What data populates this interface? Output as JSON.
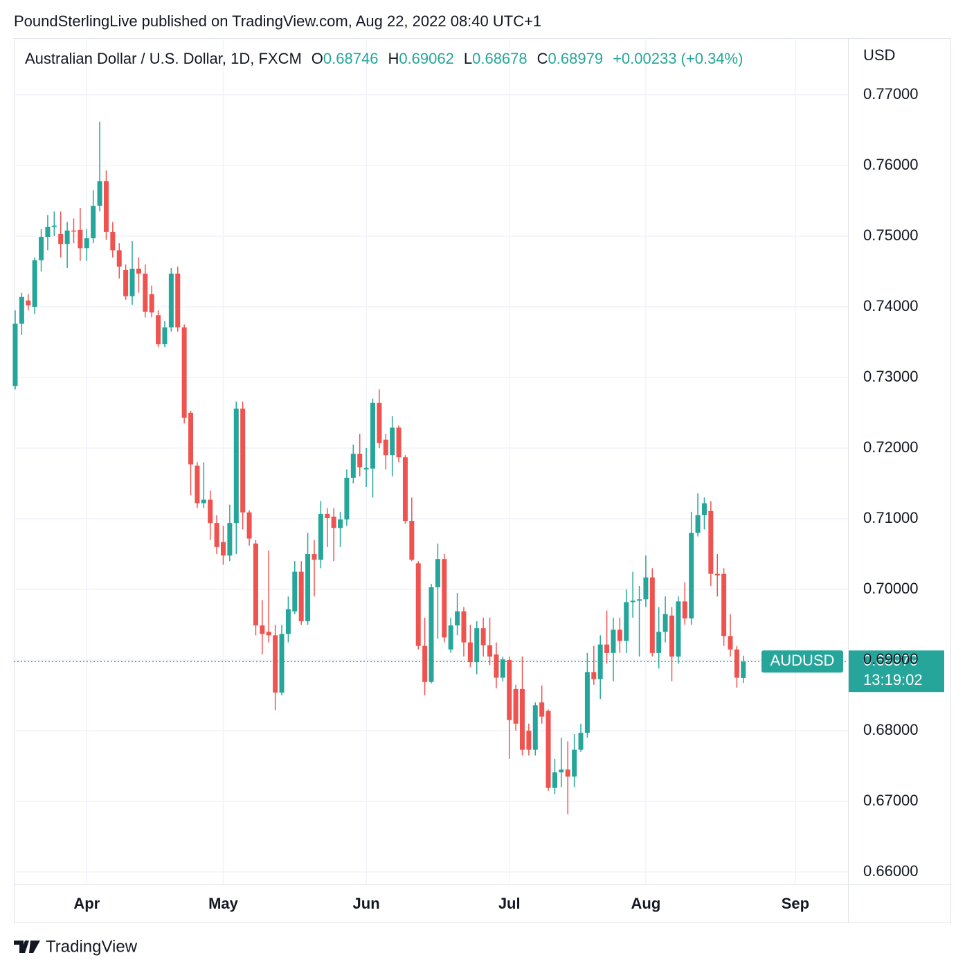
{
  "page": {
    "attribution": "PoundSterlingLive published on TradingView.com, Aug 22, 2022 08:40 UTC+1",
    "footer": "TradingView"
  },
  "chart_data": {
    "type": "candlestick",
    "title": "Australian Dollar / U.S. Dollar, 1D, FXCM",
    "legend": {
      "open_label": "O",
      "open": "0.68746",
      "high_label": "H",
      "high": "0.69062",
      "low_label": "L",
      "low": "0.68678",
      "close_label": "C",
      "close": "0.68979",
      "change": "+0.00233 (+0.34%)"
    },
    "y_axis_label": "USD",
    "last_price": {
      "symbol": "AUDUSD",
      "price": "0.68979",
      "countdown": "13:19:02"
    },
    "up_color": "#26a69a",
    "down_color": "#ef5350",
    "grid": true,
    "xlim": [
      -0.21,
      128.1
    ],
    "xticks": [
      {
        "value": 11,
        "label": "Apr"
      },
      {
        "value": 32,
        "label": "May"
      },
      {
        "value": 54,
        "label": "Jun"
      },
      {
        "value": 76,
        "label": "Jul"
      },
      {
        "value": 97,
        "label": "Aug"
      },
      {
        "value": 120,
        "label": "Sep"
      }
    ],
    "ylim": [
      0.65824,
      0.77804
    ],
    "yticks": [
      {
        "value": 0.66,
        "label": "0.66000"
      },
      {
        "value": 0.67,
        "label": "0.67000"
      },
      {
        "value": 0.68,
        "label": "0.68000"
      },
      {
        "value": 0.69,
        "label": "0.69000"
      },
      {
        "value": 0.7,
        "label": "0.70000"
      },
      {
        "value": 0.71,
        "label": "0.71000"
      },
      {
        "value": 0.72,
        "label": "0.72000"
      },
      {
        "value": 0.73,
        "label": "0.73000"
      },
      {
        "value": 0.74,
        "label": "0.74000"
      },
      {
        "value": 0.75,
        "label": "0.75000"
      },
      {
        "value": 0.76,
        "label": "0.76000"
      },
      {
        "value": 0.77,
        "label": "0.77000"
      }
    ],
    "open": [
      0.7288,
      0.7376,
      0.7409,
      0.74,
      0.7466,
      0.7499,
      0.7513,
      0.7503,
      0.7489,
      0.7508,
      0.7509,
      0.7483,
      0.7497,
      0.7543,
      0.7578,
      0.7506,
      0.748,
      0.7452,
      0.7415,
      0.7454,
      0.7447,
      0.7418,
      0.7388,
      0.7347,
      0.7371,
      0.7447,
      0.7371,
      0.725,
      0.7175,
      0.7122,
      0.7127,
      0.7094,
      0.7067,
      0.7048,
      0.7094,
      0.7256,
      0.7109,
      0.7065,
      0.6949,
      0.694,
      0.6935,
      0.6854,
      0.6937,
      0.6969,
      0.7025,
      0.6955,
      0.705,
      0.7042,
      0.7107,
      0.7103,
      0.7087,
      0.7099,
      0.7158,
      0.7192,
      0.717,
      0.7171,
      0.7264,
      0.7212,
      0.719,
      0.7229,
      0.7187,
      0.7097,
      0.7037,
      0.692,
      0.6869,
      0.7003,
      0.7043,
      0.6915,
      0.6949,
      0.6969,
      0.6925,
      0.6897,
      0.6945,
      0.6921,
      0.6908,
      0.6875,
      0.69,
      0.6859,
      0.6859,
      0.68,
      0.6773,
      0.684,
      0.6828,
      0.6719,
      0.6741,
      0.6745,
      0.6735,
      0.6773,
      0.6797,
      0.6883,
      0.6873,
      0.6922,
      0.691,
      0.6943,
      0.6927,
      0.6982,
      0.6984,
      0.6986,
      0.7017,
      0.691,
      0.694,
      0.6963,
      0.6905,
      0.6983,
      0.6959,
      0.708,
      0.7105,
      0.7111,
      0.7022,
      0.7022,
      0.6934,
      0.6915,
      0.68746
    ],
    "high": [
      0.7395,
      0.742,
      0.7418,
      0.747,
      0.751,
      0.753,
      0.7535,
      0.7535,
      0.752,
      0.7525,
      0.754,
      0.751,
      0.7565,
      0.7662,
      0.7593,
      0.752,
      0.749,
      0.746,
      0.7493,
      0.747,
      0.746,
      0.743,
      0.7395,
      0.738,
      0.7455,
      0.7457,
      0.7375,
      0.7253,
      0.718,
      0.718,
      0.714,
      0.7105,
      0.709,
      0.712,
      0.7266,
      0.7266,
      0.7112,
      0.707,
      0.6985,
      0.7055,
      0.695,
      0.695,
      0.699,
      0.704,
      0.704,
      0.708,
      0.707,
      0.7125,
      0.7115,
      0.7115,
      0.711,
      0.717,
      0.7205,
      0.722,
      0.72,
      0.727,
      0.7283,
      0.722,
      0.7245,
      0.7232,
      0.719,
      0.713,
      0.704,
      0.696,
      0.7008,
      0.7065,
      0.705,
      0.696,
      0.6995,
      0.6975,
      0.695,
      0.6955,
      0.696,
      0.696,
      0.6925,
      0.6905,
      0.6905,
      0.6865,
      0.6905,
      0.681,
      0.684,
      0.6864,
      0.683,
      0.676,
      0.679,
      0.6785,
      0.6795,
      0.681,
      0.691,
      0.692,
      0.6935,
      0.697,
      0.696,
      0.696,
      0.7,
      0.7025,
      0.7005,
      0.7048,
      0.703,
      0.6975,
      0.699,
      0.6975,
      0.699,
      0.701,
      0.711,
      0.7136,
      0.713,
      0.7125,
      0.705,
      0.703,
      0.6965,
      0.692,
      0.69062
    ],
    "low": [
      0.7283,
      0.736,
      0.7395,
      0.739,
      0.745,
      0.748,
      0.75,
      0.747,
      0.7455,
      0.749,
      0.7465,
      0.7465,
      0.749,
      0.7535,
      0.7495,
      0.747,
      0.744,
      0.741,
      0.7403,
      0.742,
      0.7385,
      0.7385,
      0.7343,
      0.7343,
      0.7365,
      0.7365,
      0.7235,
      0.7133,
      0.7115,
      0.7115,
      0.707,
      0.705,
      0.7035,
      0.704,
      0.705,
      0.7085,
      0.7062,
      0.6935,
      0.6908,
      0.6925,
      0.6829,
      0.685,
      0.6925,
      0.6965,
      0.695,
      0.695,
      0.699,
      0.703,
      0.706,
      0.704,
      0.706,
      0.709,
      0.715,
      0.716,
      0.7145,
      0.713,
      0.72,
      0.717,
      0.716,
      0.718,
      0.7093,
      0.704,
      0.6915,
      0.685,
      0.6867,
      0.693,
      0.6925,
      0.691,
      0.6935,
      0.6905,
      0.689,
      0.688,
      0.6905,
      0.6893,
      0.686,
      0.687,
      0.676,
      0.68,
      0.6765,
      0.6765,
      0.6765,
      0.681,
      0.6715,
      0.671,
      0.672,
      0.6682,
      0.672,
      0.677,
      0.679,
      0.6865,
      0.6845,
      0.6895,
      0.687,
      0.691,
      0.691,
      0.696,
      0.6905,
      0.6975,
      0.6905,
      0.6888,
      0.6925,
      0.687,
      0.6895,
      0.695,
      0.695,
      0.7075,
      0.7085,
      0.7005,
      0.699,
      0.692,
      0.6905,
      0.6861,
      0.68678
    ],
    "close": [
      0.7376,
      0.7414,
      0.7402,
      0.7466,
      0.7499,
      0.7513,
      0.7515,
      0.7489,
      0.7508,
      0.7507,
      0.7483,
      0.7497,
      0.7543,
      0.7578,
      0.7506,
      0.748,
      0.7457,
      0.7415,
      0.7454,
      0.7447,
      0.7393,
      0.7392,
      0.7347,
      0.7371,
      0.7447,
      0.7371,
      0.7243,
      0.7177,
      0.7122,
      0.7127,
      0.7094,
      0.706,
      0.7048,
      0.7094,
      0.7256,
      0.7109,
      0.7072,
      0.6949,
      0.6937,
      0.6935,
      0.6854,
      0.6937,
      0.6972,
      0.7025,
      0.6955,
      0.705,
      0.7042,
      0.7107,
      0.7101,
      0.7087,
      0.7099,
      0.7158,
      0.7192,
      0.7173,
      0.7172,
      0.7264,
      0.7207,
      0.719,
      0.7229,
      0.7187,
      0.7097,
      0.7042,
      0.692,
      0.6869,
      0.7003,
      0.7043,
      0.6932,
      0.6949,
      0.6969,
      0.6925,
      0.6897,
      0.6945,
      0.6921,
      0.6905,
      0.6875,
      0.6901,
      0.6815,
      0.681,
      0.6773,
      0.6773,
      0.6836,
      0.682,
      0.6719,
      0.6741,
      0.6745,
      0.6735,
      0.6773,
      0.6797,
      0.6883,
      0.6873,
      0.6922,
      0.691,
      0.6943,
      0.6927,
      0.6982,
      0.6984,
      0.6986,
      0.7017,
      0.691,
      0.694,
      0.6965,
      0.6905,
      0.6983,
      0.6959,
      0.708,
      0.7105,
      0.7122,
      0.7022,
      0.702,
      0.6934,
      0.6915,
      0.6875,
      0.68979
    ]
  }
}
